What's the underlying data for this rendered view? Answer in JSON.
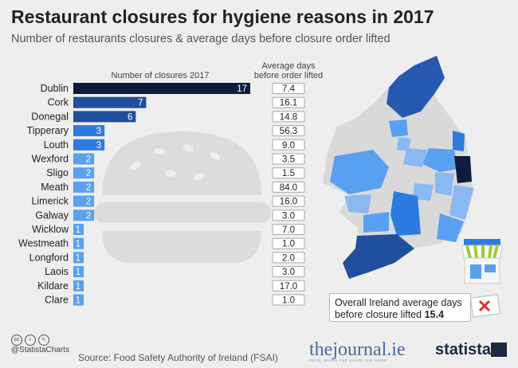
{
  "title": "Restaurant closures for hygiene reasons in 2017",
  "subtitle": "Number of restaurants closures & average days before closure order lifted",
  "col_closures": "Number of closures 2017",
  "col_days_line1": "Average days",
  "col_days_line2": "before order lifted",
  "note_line1": "Overall Ireland average days",
  "note_line2": "before closure lifted",
  "note_value": "15.4",
  "source": "Source: Food Safety Authority of Ireland (FSAI)",
  "cc_label": "@StatistaCharts",
  "brand_journal": "thejournal.ie",
  "brand_journal_tag": "READ, SHARE AND SHAPE THE NEWS",
  "brand_statista": "statista",
  "colors": {
    "dark": "#0d1b3e",
    "mid": "#1f4f9e",
    "bar": "#2e7be0",
    "light": "#5aa0f0"
  },
  "chart_data": {
    "type": "bar",
    "orientation": "horizontal",
    "categories": [
      "Dublin",
      "Cork",
      "Donegal",
      "Tipperary",
      "Louth",
      "Wexford",
      "Sligo",
      "Meath",
      "Limerick",
      "Galway",
      "Wicklow",
      "Westmeath",
      "Longford",
      "Laois",
      "Kildare",
      "Clare"
    ],
    "series": [
      {
        "name": "Number of closures 2017",
        "values": [
          17,
          7,
          6,
          3,
          3,
          2,
          2,
          2,
          2,
          2,
          1,
          1,
          1,
          1,
          1,
          1
        ]
      },
      {
        "name": "Average days before order lifted",
        "values": [
          "7.4",
          "16.1",
          "14.8",
          "56.3",
          "9.0",
          "3.5",
          "1.5",
          "84.0",
          "16.0",
          "3.0",
          "7.0",
          "1.0",
          "2.0",
          "3.0",
          "17.0",
          "1.0"
        ]
      }
    ]
  }
}
